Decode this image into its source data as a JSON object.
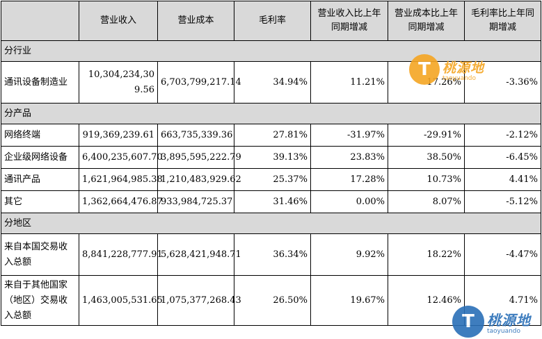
{
  "header": {
    "col0": "",
    "col1": "营业收入",
    "col2": "营业成本",
    "col3": "毛利率",
    "col4": "营业收入比上年同期增减",
    "col5": "营业成本比上年同期增减",
    "col6": "毛利率比上年同期增减"
  },
  "sections": [
    {
      "title": "分行业",
      "rows": [
        {
          "label": "通讯设备制造业",
          "revenue": "10,304,234,309.56",
          "cost": "6,703,799,217.14",
          "margin": "34.94%",
          "rev_change": "11.21%",
          "cost_change": "17.26%",
          "margin_change": "-3.36%"
        }
      ]
    },
    {
      "title": "分产品",
      "rows": [
        {
          "label": "网络终端",
          "revenue": "919,369,239.61",
          "cost": "663,735,339.36",
          "margin": "27.81%",
          "rev_change": "-31.97%",
          "cost_change": "-29.91%",
          "margin_change": "-2.12%"
        },
        {
          "label": "企业级网络设备",
          "revenue": "6,400,235,607.70",
          "cost": "3,895,595,222.79",
          "margin": "39.13%",
          "rev_change": "23.83%",
          "cost_change": "38.50%",
          "margin_change": "-6.45%"
        },
        {
          "label": "通讯产品",
          "revenue": "1,621,964,985.38",
          "cost": "1,210,483,929.62",
          "margin": "25.37%",
          "rev_change": "17.28%",
          "cost_change": "10.73%",
          "margin_change": "4.41%"
        },
        {
          "label": "其它",
          "revenue": "1,362,664,476.87",
          "cost": "933,984,725.37",
          "margin": "31.46%",
          "rev_change": "0.00%",
          "cost_change": "8.07%",
          "margin_change": "-5.12%"
        }
      ]
    },
    {
      "title": "分地区",
      "rows": [
        {
          "label": "来自本国交易收入总额",
          "revenue": "8,841,228,777.91",
          "cost": "5,628,421,948.71",
          "margin": "36.34%",
          "rev_change": "9.92%",
          "cost_change": "18.22%",
          "margin_change": "-4.47%"
        },
        {
          "label": "来自于其他国家（地区）交易收入总额",
          "revenue": "1,463,005,531.65",
          "cost": "1,075,377,268.43",
          "margin": "26.50%",
          "rev_change": "19.67%",
          "cost_change": "12.46%",
          "margin_change": "4.71%"
        }
      ]
    }
  ],
  "watermark": {
    "letter": "T",
    "cn": "桃源地",
    "en": "taoyuando",
    "color_orange": "#f5a623",
    "color_blue": "#2a6fb8"
  }
}
